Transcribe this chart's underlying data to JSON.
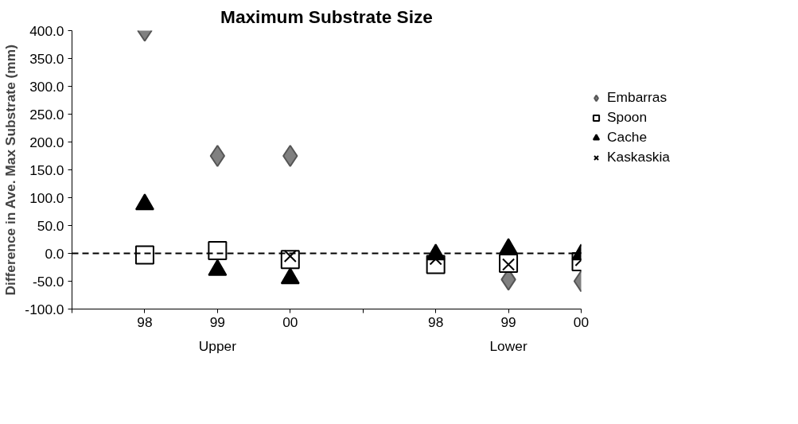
{
  "chart_data": {
    "type": "scatter",
    "title": "Maximum Substrate Size",
    "ylabel": "Difference in Ave. Max Substrate (mm)",
    "categories": [
      "98",
      "99",
      "00",
      null,
      "98",
      "99",
      "00"
    ],
    "series": [
      {
        "name": "Embarras",
        "color": "#808080",
        "marker": "diamond",
        "values": [
          400,
          175,
          175,
          null,
          null,
          -47,
          -50
        ]
      },
      {
        "name": "Spoon",
        "color": "#ffffff",
        "marker": "square",
        "values": [
          -3,
          5,
          -11,
          null,
          -20,
          -18,
          -15
        ]
      },
      {
        "name": "Cache",
        "color": "#000000",
        "marker": "triangle",
        "values": [
          88,
          -30,
          -45,
          null,
          -2,
          8,
          -2
        ]
      },
      {
        "name": "Kaskaskia",
        "color": "#000000",
        "marker": "cross",
        "values": [
          null,
          null,
          -5,
          null,
          -10,
          -20,
          -12
        ]
      }
    ],
    "ylim": [
      -100,
      400
    ],
    "yticks": [
      {
        "value": -100,
        "label": "-100.0"
      },
      {
        "value": -50,
        "label": "-50.0"
      },
      {
        "value": 0,
        "label": "0.0"
      },
      {
        "value": 50,
        "label": "50.0"
      },
      {
        "value": 100,
        "label": "100.0"
      },
      {
        "value": 150,
        "label": "150.0"
      },
      {
        "value": 200,
        "label": "200.0"
      },
      {
        "value": 250,
        "label": "250.0"
      },
      {
        "value": 300,
        "label": "300.0"
      },
      {
        "value": 350,
        "label": "350.0"
      },
      {
        "value": 400,
        "label": "400.0"
      }
    ],
    "ref_lines": [
      {
        "axis": "y",
        "value": 0,
        "line_style": "dashed",
        "color": "#000000"
      }
    ],
    "annotations": [
      "Upper",
      "Lower"
    ],
    "grid": false,
    "legend": "right"
  }
}
